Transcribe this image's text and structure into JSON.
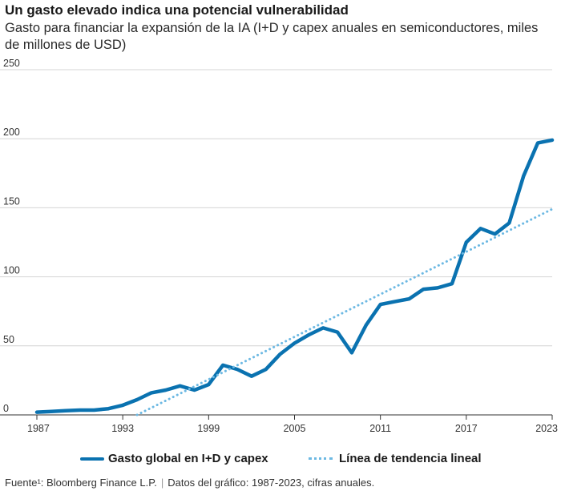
{
  "header": {
    "title": "Un gasto elevado indica una potencial vulnerabilidad",
    "subtitle": "Gasto para financiar la expansión de la IA (I+D y capex anuales en semiconductores, miles de millones de USD)"
  },
  "legend": {
    "series_label": "Gasto global en I+D y capex",
    "trend_label": "Línea de tendencia lineal"
  },
  "footer": {
    "source": "Fuente¹: Bloomberg Finance L.P.",
    "separator": "|",
    "note": "Datos del gráfico: 1987-2023, cifras anuales."
  },
  "colors": {
    "series": "#0a72b0",
    "trend": "#6db9e3",
    "grid": "#d4d4d4",
    "axis": "#333333"
  },
  "chart_data": {
    "type": "line",
    "title": "Un gasto elevado indica una potencial vulnerabilidad",
    "ylim": [
      0,
      250
    ],
    "xlim": [
      1987,
      2023
    ],
    "yticks": [
      0,
      50,
      100,
      150,
      200,
      250
    ],
    "xticks": [
      1987,
      1993,
      1999,
      2005,
      2011,
      2017,
      2023
    ],
    "grid": true,
    "legend_position": "bottom",
    "series": [
      {
        "name": "Gasto global en I+D y capex",
        "style": "solid",
        "x": [
          1987,
          1988,
          1989,
          1990,
          1991,
          1992,
          1993,
          1994,
          1995,
          1996,
          1997,
          1998,
          1999,
          2000,
          2001,
          2002,
          2003,
          2004,
          2005,
          2006,
          2007,
          2008,
          2009,
          2010,
          2011,
          2012,
          2013,
          2014,
          2015,
          2016,
          2017,
          2018,
          2019,
          2020,
          2021,
          2022,
          2023
        ],
        "y": [
          2,
          2.5,
          3,
          3.5,
          3.5,
          4.5,
          7,
          11,
          16,
          18,
          21,
          18,
          22,
          36,
          33,
          28,
          33,
          44,
          52,
          58,
          63,
          60,
          45,
          65,
          80,
          82,
          84,
          91,
          92,
          95,
          125,
          135,
          131,
          139,
          173,
          197,
          199
        ]
      },
      {
        "name": "Línea de tendencia lineal",
        "style": "dotted",
        "x": [
          1994,
          2023
        ],
        "y": [
          0,
          149
        ]
      }
    ]
  }
}
